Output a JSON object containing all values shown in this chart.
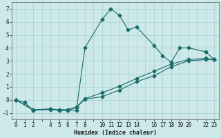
{
  "xlabel": "Humidex (Indice chaleur)",
  "bg_color": "#cce8e8",
  "grid_color": "#aacfcf",
  "line_color": "#1a6b6b",
  "xlim": [
    -0.5,
    23.5
  ],
  "ylim": [
    -1.5,
    7.5
  ],
  "xtick_positions": [
    0,
    1,
    2,
    3,
    4,
    5,
    6,
    7,
    8,
    9,
    10,
    11,
    12,
    13,
    14,
    15,
    16,
    17,
    18,
    19,
    20,
    21,
    22,
    23
  ],
  "xtick_labels": [
    "0",
    "1",
    "2",
    "",
    "4",
    "5",
    "6",
    "7",
    "8",
    "",
    "10",
    "11",
    "12",
    "13",
    "14",
    "",
    "16",
    "17",
    "18",
    "19",
    "20",
    "",
    "22",
    "23"
  ],
  "yticks": [
    -1,
    0,
    1,
    2,
    3,
    4,
    5,
    6,
    7
  ],
  "line1_x": [
    0,
    1,
    2,
    4,
    5,
    6,
    7,
    8,
    10,
    11,
    12,
    13,
    14,
    16,
    17,
    18,
    19,
    20,
    22,
    23
  ],
  "line1_y": [
    0.0,
    -0.2,
    -0.8,
    -0.7,
    -0.8,
    -0.8,
    -0.8,
    4.0,
    6.2,
    7.0,
    6.5,
    5.4,
    5.6,
    4.2,
    3.4,
    2.9,
    4.0,
    4.0,
    3.7,
    3.1
  ],
  "line2_x": [
    0,
    2,
    4,
    5,
    6,
    7,
    8,
    10,
    12,
    14,
    16,
    18,
    20,
    22,
    23
  ],
  "line2_y": [
    0.0,
    -0.8,
    -0.75,
    -0.8,
    -0.8,
    -0.6,
    0.05,
    0.25,
    0.75,
    1.4,
    1.85,
    2.55,
    3.0,
    3.1,
    3.1
  ],
  "line3_x": [
    0,
    2,
    4,
    5,
    6,
    7,
    8,
    10,
    12,
    14,
    16,
    18,
    20,
    22,
    23
  ],
  "line3_y": [
    0.0,
    -0.75,
    -0.7,
    -0.75,
    -0.75,
    -0.55,
    0.1,
    0.55,
    1.05,
    1.65,
    2.2,
    2.75,
    3.1,
    3.2,
    3.1
  ]
}
